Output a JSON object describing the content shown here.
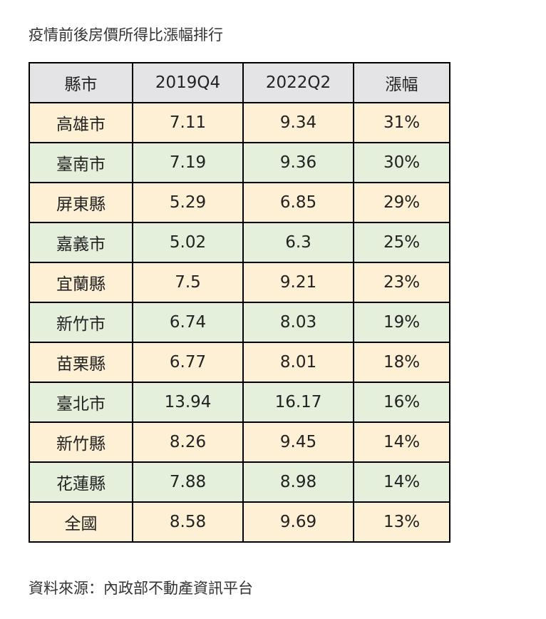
{
  "title": "疫情前後房價所得比漲幅排行",
  "source": "資料來源：內政部不動產資訊平台",
  "colors": {
    "header_bg": "#e4e4e6",
    "row_odd_bg": "#fdf0d5",
    "row_even_bg": "#e4efdc",
    "border": "#000000"
  },
  "chart_data": {
    "type": "table",
    "title": "疫情前後房價所得比漲幅排行",
    "columns": [
      "縣市",
      "2019Q4",
      "2022Q2",
      "漲幅"
    ],
    "rows": [
      [
        "高雄市",
        "7.11",
        "9.34",
        "31%"
      ],
      [
        "臺南市",
        "7.19",
        "9.36",
        "30%"
      ],
      [
        "屏東縣",
        "5.29",
        "6.85",
        "29%"
      ],
      [
        "嘉義市",
        "5.02",
        "6.3",
        "25%"
      ],
      [
        "宜蘭縣",
        "7.5",
        "9.21",
        "23%"
      ],
      [
        "新竹市",
        "6.74",
        "8.03",
        "19%"
      ],
      [
        "苗栗縣",
        "6.77",
        "8.01",
        "18%"
      ],
      [
        "臺北市",
        "13.94",
        "16.17",
        "16%"
      ],
      [
        "新竹縣",
        "8.26",
        "9.45",
        "14%"
      ],
      [
        "花蓮縣",
        "7.88",
        "8.98",
        "14%"
      ],
      [
        "全國",
        "8.58",
        "9.69",
        "13%"
      ]
    ]
  }
}
